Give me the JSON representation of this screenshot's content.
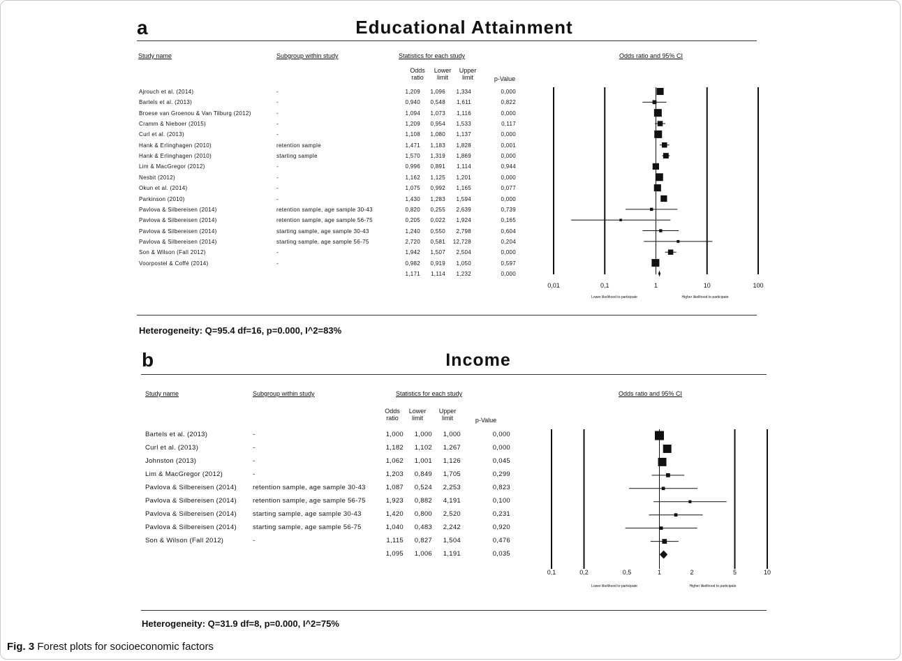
{
  "panels": [
    {
      "letter": "a",
      "title": "Educational Attainment",
      "headers": {
        "study": "Study name",
        "subgroup": "Subgroup within study",
        "stats": "Statistics for each study",
        "or": "Odds\nratio",
        "lower": "Lower\nlimit",
        "upper": "Upper\nlimit",
        "p": "p-Value",
        "plot": "Odds ratio and 95% CI"
      },
      "rows": [
        {
          "study": "Ajrouch et al. (2014)",
          "subgroup": "-",
          "or": "1,209",
          "lower": "1,096",
          "upper": "1,334",
          "p": "0,000"
        },
        {
          "study": "Bartels et al. (2013)",
          "subgroup": "-",
          "or": "0,940",
          "lower": "0,548",
          "upper": "1,611",
          "p": "0,822"
        },
        {
          "study": "Broese van Groenou & Van Tilburg (2012)",
          "subgroup": "-",
          "or": "1,094",
          "lower": "1,073",
          "upper": "1,116",
          "p": "0,000"
        },
        {
          "study": "Cramm & Nieboer (2015)",
          "subgroup": "-",
          "or": "1,209",
          "lower": "0,954",
          "upper": "1,533",
          "p": "0,117"
        },
        {
          "study": "Curl et al. (2013)",
          "subgroup": "-",
          "or": "1,108",
          "lower": "1,080",
          "upper": "1,137",
          "p": "0,000"
        },
        {
          "study": "Hank & Erlinghagen (2010)",
          "subgroup": "retention sample",
          "or": "1,471",
          "lower": "1,183",
          "upper": "1,828",
          "p": "0,001"
        },
        {
          "study": "Hank & Erlinghagen (2010)",
          "subgroup": "starting sample",
          "or": "1,570",
          "lower": "1,319",
          "upper": "1,869",
          "p": "0,000"
        },
        {
          "study": "Lim & MacGregor (2012)",
          "subgroup": "-",
          "or": "0,996",
          "lower": "0,891",
          "upper": "1,114",
          "p": "0,944"
        },
        {
          "study": "Nesbit (2012)",
          "subgroup": "-",
          "or": "1,162",
          "lower": "1,125",
          "upper": "1,201",
          "p": "0,000"
        },
        {
          "study": "Okun et al. (2014)",
          "subgroup": "-",
          "or": "1,075",
          "lower": "0,992",
          "upper": "1,165",
          "p": "0,077"
        },
        {
          "study": "Parkinson (2010)",
          "subgroup": "-",
          "or": "1,430",
          "lower": "1,283",
          "upper": "1,594",
          "p": "0,000"
        },
        {
          "study": "Pavlova & Silbereisen (2014)",
          "subgroup": "retention sample, age sample 30-43",
          "or": "0,820",
          "lower": "0,255",
          "upper": "2,639",
          "p": "0,739"
        },
        {
          "study": "Pavlova & Silbereisen (2014)",
          "subgroup": "retention sample, age sample 56-75",
          "or": "0,205",
          "lower": "0,022",
          "upper": "1,924",
          "p": "0,165"
        },
        {
          "study": "Pavlova & Silbereisen (2014)",
          "subgroup": "starting sample, age sample 30-43",
          "or": "1,240",
          "lower": "0,550",
          "upper": "2,798",
          "p": "0,604"
        },
        {
          "study": "Pavlova & Silbereisen (2014)",
          "subgroup": "starting sample, age sample 56-75",
          "or": "2,720",
          "lower": "0,581",
          "upper": "12,728",
          "p": "0,204"
        },
        {
          "study": "Son & Wilson (Fall 2012)",
          "subgroup": "-",
          "or": "1,942",
          "lower": "1,507",
          "upper": "2,504",
          "p": "0,000"
        },
        {
          "study": "Voorpostel & Coffé (2014)",
          "subgroup": "-",
          "or": "0,982",
          "lower": "0,919",
          "upper": "1,050",
          "p": "0,597"
        },
        {
          "study": "",
          "subgroup": "",
          "or": "1,171",
          "lower": "1,114",
          "upper": "1,232",
          "p": "0,000"
        }
      ],
      "heterogeneity": "Heterogeneity: Q=95.4 df=16, p=0.000, I^2=83%"
    },
    {
      "letter": "b",
      "title": "Income",
      "headers": {
        "study": "Study name",
        "subgroup": "Subgroup within study",
        "stats": "Statistics for each study",
        "or": "Odds\nratio",
        "lower": "Lower\nlimit",
        "upper": "Upper\nlimit",
        "p": "p-Value",
        "plot": "Odds ratio and 95% CI"
      },
      "rows": [
        {
          "study": "Bartels et al. (2013)",
          "subgroup": "-",
          "or": "1,000",
          "lower": "1,000",
          "upper": "1,000",
          "p": "0,000"
        },
        {
          "study": "Curl et al. (2013)",
          "subgroup": "-",
          "or": "1,182",
          "lower": "1,102",
          "upper": "1,267",
          "p": "0,000"
        },
        {
          "study": "Johnston (2013)",
          "subgroup": "-",
          "or": "1,062",
          "lower": "1,001",
          "upper": "1,126",
          "p": "0,045"
        },
        {
          "study": "Lim & MacGregor (2012)",
          "subgroup": "-",
          "or": "1,203",
          "lower": "0,849",
          "upper": "1,705",
          "p": "0,299"
        },
        {
          "study": "Pavlova & Silbereisen (2014)",
          "subgroup": "retention sample, age sample 30-43",
          "or": "1,087",
          "lower": "0,524",
          "upper": "2,253",
          "p": "0,823"
        },
        {
          "study": "Pavlova & Silbereisen (2014)",
          "subgroup": "retention sample, age sample 56-75",
          "or": "1,923",
          "lower": "0,882",
          "upper": "4,191",
          "p": "0,100"
        },
        {
          "study": "Pavlova & Silbereisen (2014)",
          "subgroup": "starting sample, age sample 30-43",
          "or": "1,420",
          "lower": "0,800",
          "upper": "2,520",
          "p": "0,231"
        },
        {
          "study": "Pavlova & Silbereisen (2014)",
          "subgroup": "starting sample, age sample 56-75",
          "or": "1,040",
          "lower": "0,483",
          "upper": "2,242",
          "p": "0,920"
        },
        {
          "study": "Son & Wilson (Fall 2012)",
          "subgroup": "-",
          "or": "1,115",
          "lower": "0,827",
          "upper": "1,504",
          "p": "0,476"
        },
        {
          "study": "",
          "subgroup": "",
          "or": "1,095",
          "lower": "1,006",
          "upper": "1,191",
          "p": "0,035"
        }
      ],
      "heterogeneity": "Heterogeneity: Q=31.9 df=8, p=0.000, I^2=75%"
    }
  ],
  "chart_data": [
    {
      "type": "forest",
      "title": "Educational Attainment",
      "xscale": "log",
      "xticks": [
        0.01,
        0.1,
        1,
        10,
        100
      ],
      "xtick_labels": [
        "0,01",
        "0,1",
        "1",
        "10",
        "100"
      ],
      "vlines": [
        0.01,
        0.1,
        1,
        10,
        100
      ],
      "note_left": "Lower likelihood to participate",
      "note_right": "Higher likelihood to participate",
      "points": [
        {
          "or": 1.209,
          "lo": 1.096,
          "hi": 1.334,
          "w": 4.6
        },
        {
          "or": 0.94,
          "lo": 0.548,
          "hi": 1.611,
          "w": 2.6
        },
        {
          "or": 1.094,
          "lo": 1.073,
          "hi": 1.116,
          "w": 5
        },
        {
          "or": 1.209,
          "lo": 0.954,
          "hi": 1.533,
          "w": 3.4
        },
        {
          "or": 1.108,
          "lo": 1.08,
          "hi": 1.137,
          "w": 5
        },
        {
          "or": 1.471,
          "lo": 1.183,
          "hi": 1.828,
          "w": 3.4
        },
        {
          "or": 1.57,
          "lo": 1.319,
          "hi": 1.869,
          "w": 3.6
        },
        {
          "or": 0.996,
          "lo": 0.891,
          "hi": 1.114,
          "w": 4.2
        },
        {
          "or": 1.162,
          "lo": 1.125,
          "hi": 1.201,
          "w": 5
        },
        {
          "or": 1.075,
          "lo": 0.992,
          "hi": 1.165,
          "w": 4.6
        },
        {
          "or": 1.43,
          "lo": 1.283,
          "hi": 1.594,
          "w": 4.2
        },
        {
          "or": 0.82,
          "lo": 0.255,
          "hi": 2.639,
          "w": 2
        },
        {
          "or": 0.205,
          "lo": 0.022,
          "hi": 1.924,
          "w": 1.6
        },
        {
          "or": 1.24,
          "lo": 0.55,
          "hi": 2.798,
          "w": 2
        },
        {
          "or": 2.72,
          "lo": 0.581,
          "hi": 12.728,
          "w": 1.8
        },
        {
          "or": 1.942,
          "lo": 1.507,
          "hi": 2.504,
          "w": 3.4
        },
        {
          "or": 0.982,
          "lo": 0.919,
          "hi": 1.05,
          "w": 5
        }
      ],
      "summary": {
        "or": 1.171,
        "lo": 1.114,
        "hi": 1.232
      }
    },
    {
      "type": "forest",
      "title": "Income",
      "xscale": "log",
      "xticks": [
        0.1,
        0.2,
        0.5,
        1,
        2,
        5,
        10
      ],
      "xtick_labels": [
        "0,1",
        "0,2",
        "0,5",
        "1",
        "2",
        "5",
        "10"
      ],
      "vlines": [
        0.1,
        0.2,
        1,
        5,
        10
      ],
      "note_left": "Lower likelihood to participate",
      "note_right": "Higher likelihood to participate",
      "points": [
        {
          "or": 1.0,
          "lo": 1.0,
          "hi": 1.0,
          "w": 5
        },
        {
          "or": 1.182,
          "lo": 1.102,
          "hi": 1.267,
          "w": 4.6
        },
        {
          "or": 1.062,
          "lo": 1.001,
          "hi": 1.126,
          "w": 4.6
        },
        {
          "or": 1.203,
          "lo": 0.849,
          "hi": 1.705,
          "w": 2.2
        },
        {
          "or": 1.087,
          "lo": 0.524,
          "hi": 2.253,
          "w": 1.8
        },
        {
          "or": 1.923,
          "lo": 0.882,
          "hi": 4.191,
          "w": 1.6
        },
        {
          "or": 1.42,
          "lo": 0.8,
          "hi": 2.52,
          "w": 1.8
        },
        {
          "or": 1.04,
          "lo": 0.483,
          "hi": 2.242,
          "w": 1.8
        },
        {
          "or": 1.115,
          "lo": 0.827,
          "hi": 1.504,
          "w": 2.6
        }
      ],
      "summary": {
        "or": 1.095,
        "lo": 1.006,
        "hi": 1.191
      }
    }
  ],
  "caption": {
    "label": "Fig. 3",
    "text": " Forest plots for socioeconomic factors"
  }
}
